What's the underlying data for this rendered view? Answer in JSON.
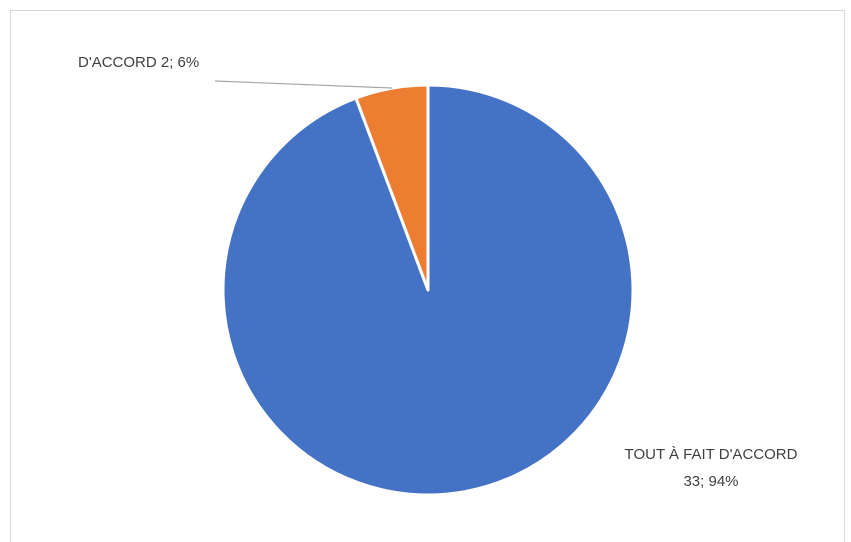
{
  "chart_data": {
    "type": "pie",
    "title": "",
    "slices": [
      {
        "label": "TOUT À FAIT D'ACCORD",
        "value": 33,
        "percent": "94%",
        "color": "#4472C4"
      },
      {
        "label": "D'ACCORD",
        "value": 2,
        "percent": "6%",
        "color": "#ED7D31"
      }
    ],
    "data_labels": {
      "slice_0_line1": "TOUT À FAIT D'ACCORD",
      "slice_0_line2": "33; 94%",
      "slice_1": "D'ACCORD 2; 6%"
    },
    "legend": "none",
    "start_angle": "top",
    "direction": "clockwise"
  }
}
